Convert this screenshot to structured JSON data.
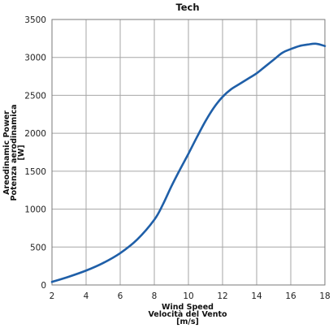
{
  "chart_data": {
    "type": "line",
    "title": "Tech",
    "xlabel": [
      "Wind Speed",
      "Velocità del Vento",
      "[m/s]"
    ],
    "ylabel": [
      "Areodinamic Power",
      "Potenza aerodinamica",
      "[W]"
    ],
    "xlim": [
      2,
      18
    ],
    "ylim": [
      0,
      3500
    ],
    "xticks": [
      2,
      4,
      6,
      8,
      10,
      12,
      14,
      16,
      18
    ],
    "yticks": [
      0,
      500,
      1000,
      1500,
      2000,
      2500,
      3000,
      3500
    ],
    "grid": true,
    "line_color": "#1f5fa8",
    "series": [
      {
        "x": [
          2,
          3,
          4,
          5,
          6,
          7,
          8,
          8.5,
          9,
          9.5,
          10,
          10.5,
          11,
          11.5,
          12,
          12.5,
          13,
          13.5,
          14,
          14.5,
          15,
          15.5,
          16,
          16.5,
          17,
          17.5,
          18
        ],
        "y": [
          40,
          110,
          190,
          290,
          420,
          600,
          860,
          1060,
          1300,
          1520,
          1730,
          1950,
          2160,
          2340,
          2480,
          2580,
          2650,
          2720,
          2790,
          2880,
          2970,
          3060,
          3110,
          3150,
          3170,
          3180,
          3150
        ]
      }
    ]
  }
}
